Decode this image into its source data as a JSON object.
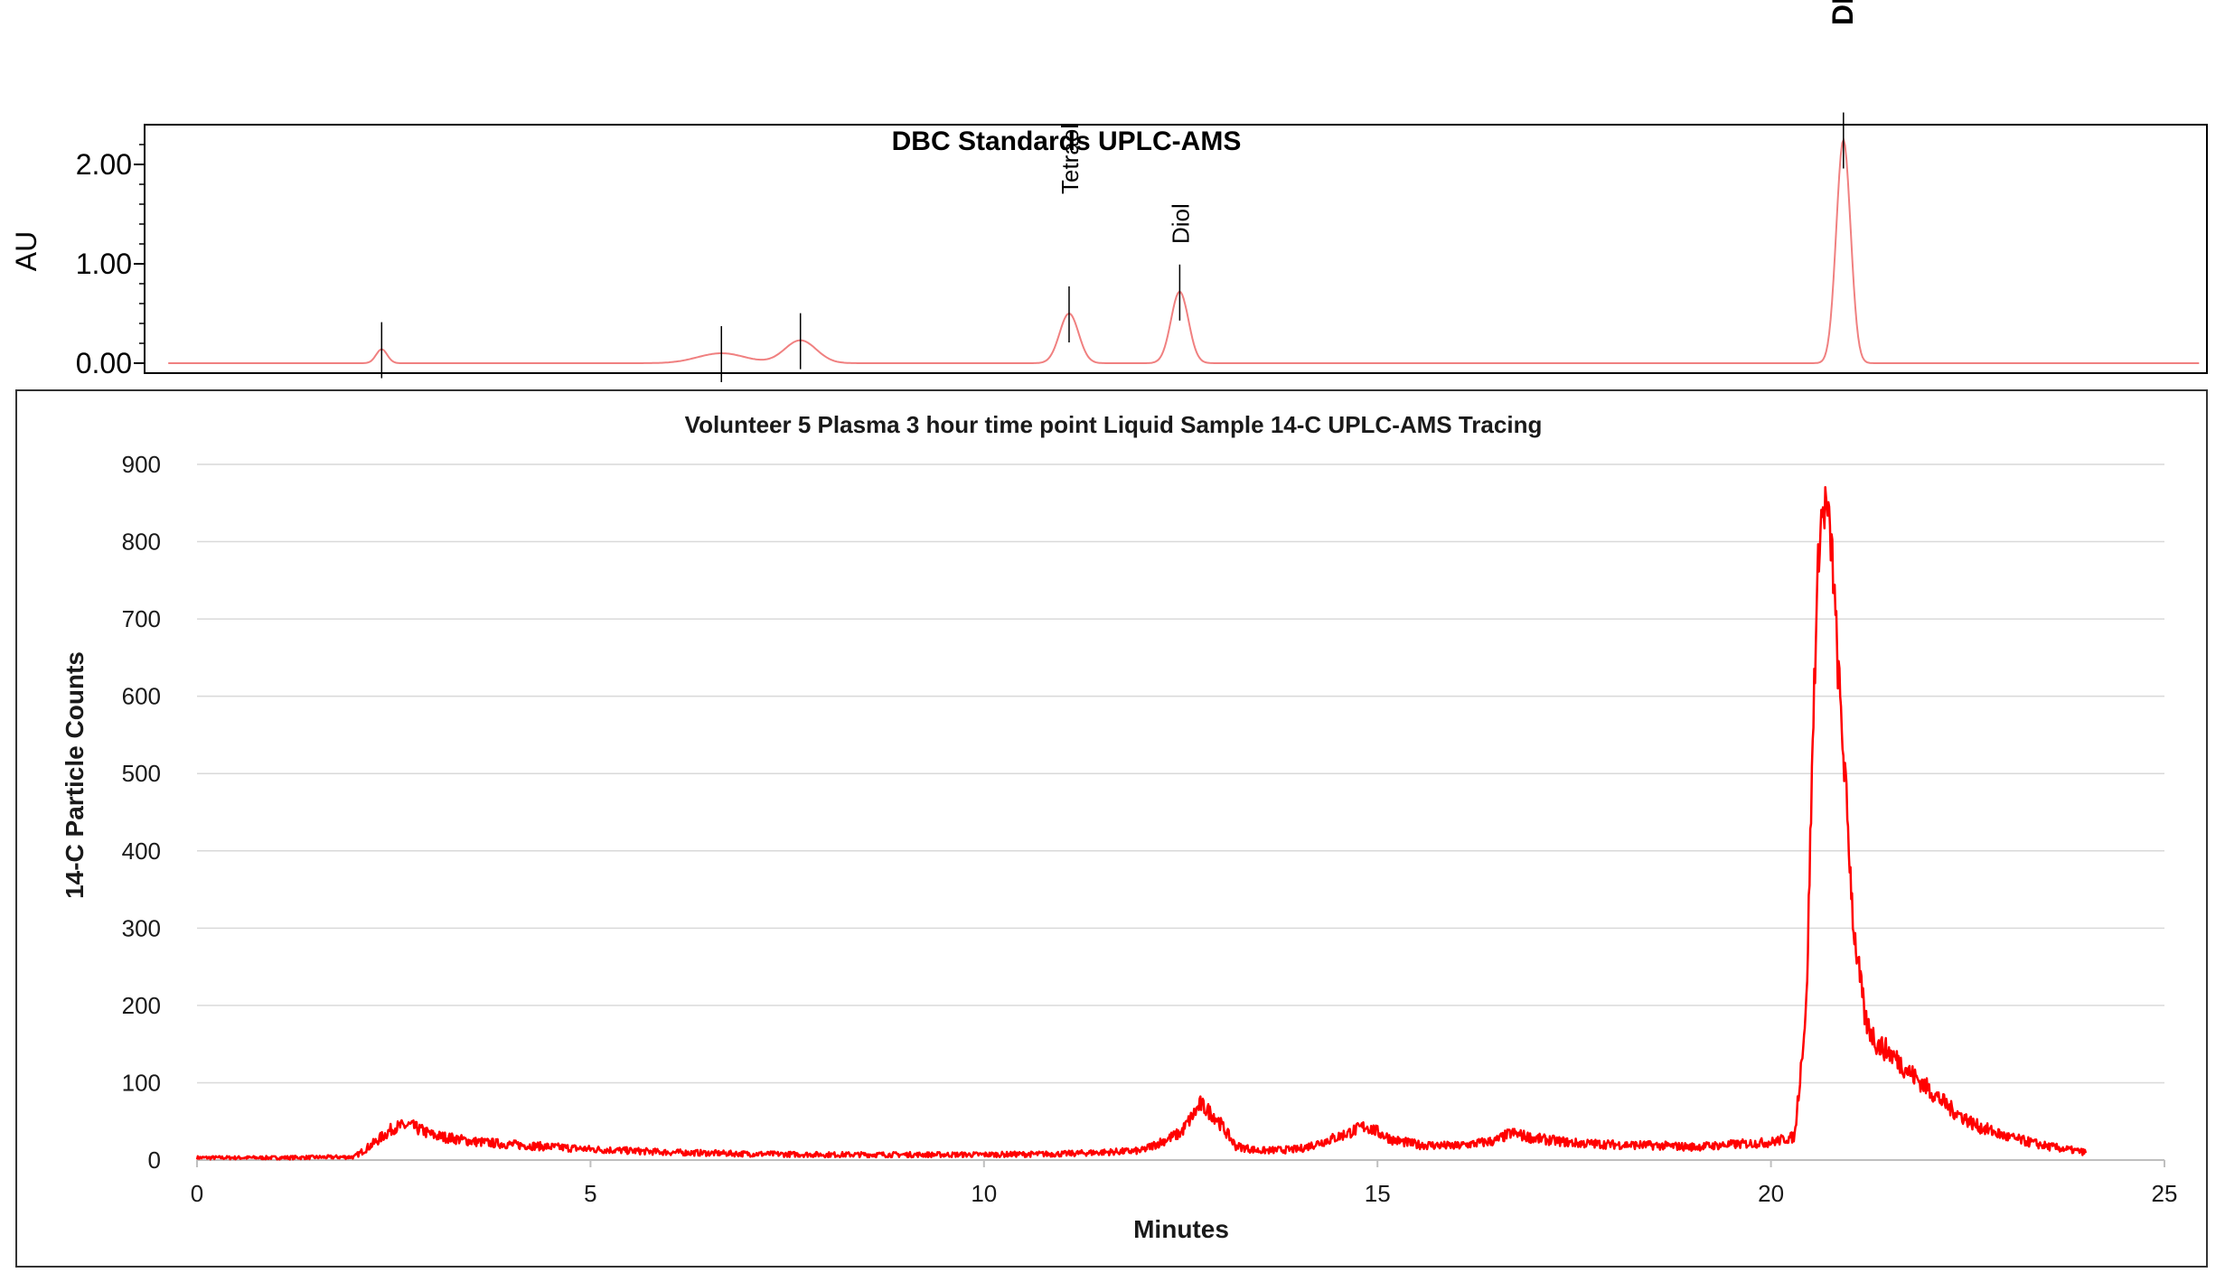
{
  "chart_data": [
    {
      "type": "line",
      "title": "DBC Standards UPLC-AMS",
      "ylabel": "AU",
      "xlabel": "",
      "x_range": [
        -0.7,
        25.4
      ],
      "ylim": [
        -0.1,
        2.4
      ],
      "y_ticks": [
        "0.00",
        "1.00",
        "2.00"
      ],
      "y_tick_values": [
        0,
        1,
        2
      ],
      "line_color": "#f08080",
      "marker_color": "#000000",
      "grid": false,
      "legend": "none",
      "peaks": [
        {
          "x": 2.3,
          "height": 0.14,
          "width": 0.07
        },
        {
          "x": 6.6,
          "height": 0.1,
          "width": 0.3
        },
        {
          "x": 7.6,
          "height": 0.23,
          "width": 0.2
        },
        {
          "x": 11.0,
          "height": 0.5,
          "width": 0.12
        },
        {
          "x": 12.4,
          "height": 0.72,
          "width": 0.11
        },
        {
          "x": 20.8,
          "height": 2.25,
          "width": 0.09
        }
      ],
      "peak_markers": [
        2.3,
        6.6,
        7.6,
        11.0,
        12.4,
        20.8
      ],
      "annotations": [
        {
          "text": "Tetraol",
          "x": 11.0,
          "y": 1.7
        },
        {
          "text": "Diol",
          "x": 12.4,
          "y": 1.2
        },
        {
          "text": "DBC",
          "x": 20.8,
          "y": 3.4
        }
      ]
    },
    {
      "type": "line",
      "title": "Volunteer 5 Plasma 3 hour time point Liquid Sample 14-C UPLC-AMS Tracing",
      "xlabel": "Minutes",
      "ylabel": "14-C Particle Counts",
      "xlim": [
        0,
        25
      ],
      "ylim": [
        0,
        900
      ],
      "x_ticks": [
        0,
        5,
        10,
        15,
        20,
        25
      ],
      "y_ticks": [
        0,
        100,
        200,
        300,
        400,
        500,
        600,
        700,
        800,
        900
      ],
      "grid": true,
      "legend": "none",
      "line_color": "#ff0000",
      "series": [
        {
          "x": [
            0,
            1,
            2.0,
            2.25,
            2.5,
            2.7,
            3.0,
            3.5,
            4.0,
            5.0,
            6.0,
            7.0,
            8.0,
            9.0,
            10.0,
            11.0,
            12.0,
            12.5,
            12.75,
            12.95,
            13.2,
            13.5,
            14.0,
            14.5,
            14.85,
            15.2,
            15.5,
            16.0,
            16.5,
            16.7,
            17.0,
            17.5,
            18.0,
            18.5,
            19.0,
            19.5,
            20.0,
            20.3,
            20.45,
            20.55,
            20.62,
            20.7,
            20.78,
            20.85,
            20.95,
            21.05,
            21.2,
            21.35,
            21.5,
            21.8,
            22.0,
            22.3,
            22.6,
            23.0,
            23.5,
            24.0
          ],
          "values": [
            3,
            3,
            4,
            22,
            42,
            45,
            32,
            24,
            20,
            14,
            10,
            8,
            7,
            7,
            7,
            8,
            12,
            35,
            72,
            55,
            18,
            12,
            14,
            30,
            44,
            26,
            20,
            18,
            25,
            35,
            28,
            22,
            20,
            19,
            17,
            20,
            23,
            30,
            200,
            620,
            820,
            850,
            780,
            640,
            480,
            300,
            180,
            150,
            140,
            110,
            92,
            65,
            45,
            30,
            18,
            10
          ]
        }
      ]
    }
  ]
}
